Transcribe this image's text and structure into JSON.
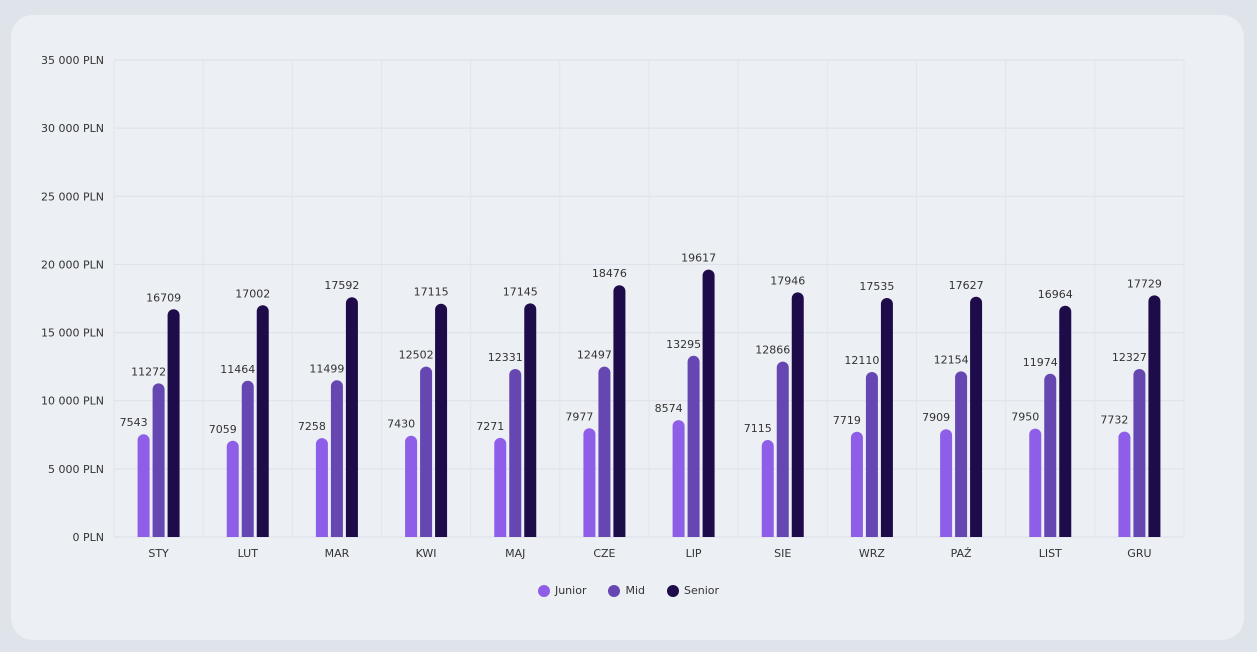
{
  "chart_data": {
    "type": "bar",
    "categories": [
      "STY",
      "LUT",
      "MAR",
      "KWI",
      "MAJ",
      "CZE",
      "LIP",
      "SIE",
      "WRZ",
      "PAŹ",
      "LIST",
      "GRU"
    ],
    "series": [
      {
        "name": "Junior",
        "color": "#8f5ee8",
        "values": [
          7543,
          7059,
          7258,
          7430,
          7271,
          7977,
          8574,
          7115,
          7719,
          7909,
          7950,
          7732
        ]
      },
      {
        "name": "Mid",
        "color": "#6646b0",
        "values": [
          11272,
          11464,
          11499,
          12502,
          12331,
          12497,
          13295,
          12866,
          12110,
          12154,
          11974,
          12327
        ]
      },
      {
        "name": "Senior",
        "color": "#1e0b4a",
        "values": [
          16709,
          17002,
          17592,
          17115,
          17145,
          18476,
          19617,
          17946,
          17535,
          17627,
          16964,
          17729
        ]
      }
    ],
    "y_ticks": [
      "0 PLN",
      "5 000 PLN",
      "10 000 PLN",
      "15 000 PLN",
      "20 000 PLN",
      "25 000 PLN",
      "30 000 PLN",
      "35 000 PLN"
    ],
    "ylim": [
      0,
      35000
    ],
    "grid": true,
    "legend_position": "bottom"
  }
}
